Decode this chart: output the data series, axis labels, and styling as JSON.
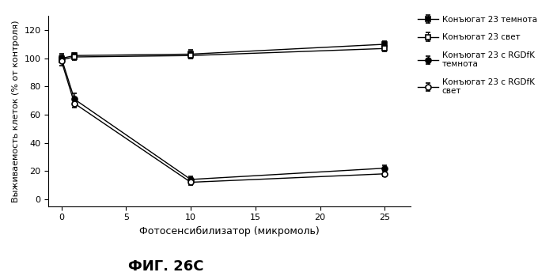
{
  "x": [
    0,
    1,
    10,
    25
  ],
  "series": [
    {
      "label": "Конъюгат 23 темнота",
      "y": [
        100,
        102,
        103,
        110
      ],
      "yerr": [
        2,
        2,
        3,
        2
      ],
      "marker": "s",
      "linestyle": "-",
      "markerfacecolor": "black"
    },
    {
      "label": "Конъюгат 23 свет",
      "y": [
        99,
        101,
        102,
        107
      ],
      "yerr": [
        2,
        2,
        2,
        2
      ],
      "marker": "s",
      "linestyle": "-",
      "markerfacecolor": "white"
    },
    {
      "label": "Конъюгат 23 с RGDfK\nтемнота",
      "y": [
        100,
        71,
        14,
        22
      ],
      "yerr": [
        3,
        4,
        2,
        2
      ],
      "marker": "o",
      "linestyle": "-",
      "markerfacecolor": "black"
    },
    {
      "label": "Конъюгат 23 с RGDfK\nсвет",
      "y": [
        98,
        68,
        12,
        18
      ],
      "yerr": [
        3,
        3,
        2,
        2
      ],
      "marker": "o",
      "linestyle": "-",
      "markerfacecolor": "white"
    }
  ],
  "xlabel": "Фотосенсибилизатор (микромоль)",
  "ylabel": "Выживаемость клеток (% от контроля)",
  "ylim": [
    -5,
    130
  ],
  "yticks": [
    0,
    20,
    40,
    60,
    80,
    100,
    120
  ],
  "xlim": [
    -1,
    27
  ],
  "xticks": [
    0,
    5,
    10,
    15,
    20,
    25
  ],
  "title": "ФИГ. 26C",
  "figsize": [
    6.99,
    3.49
  ],
  "dpi": 100
}
